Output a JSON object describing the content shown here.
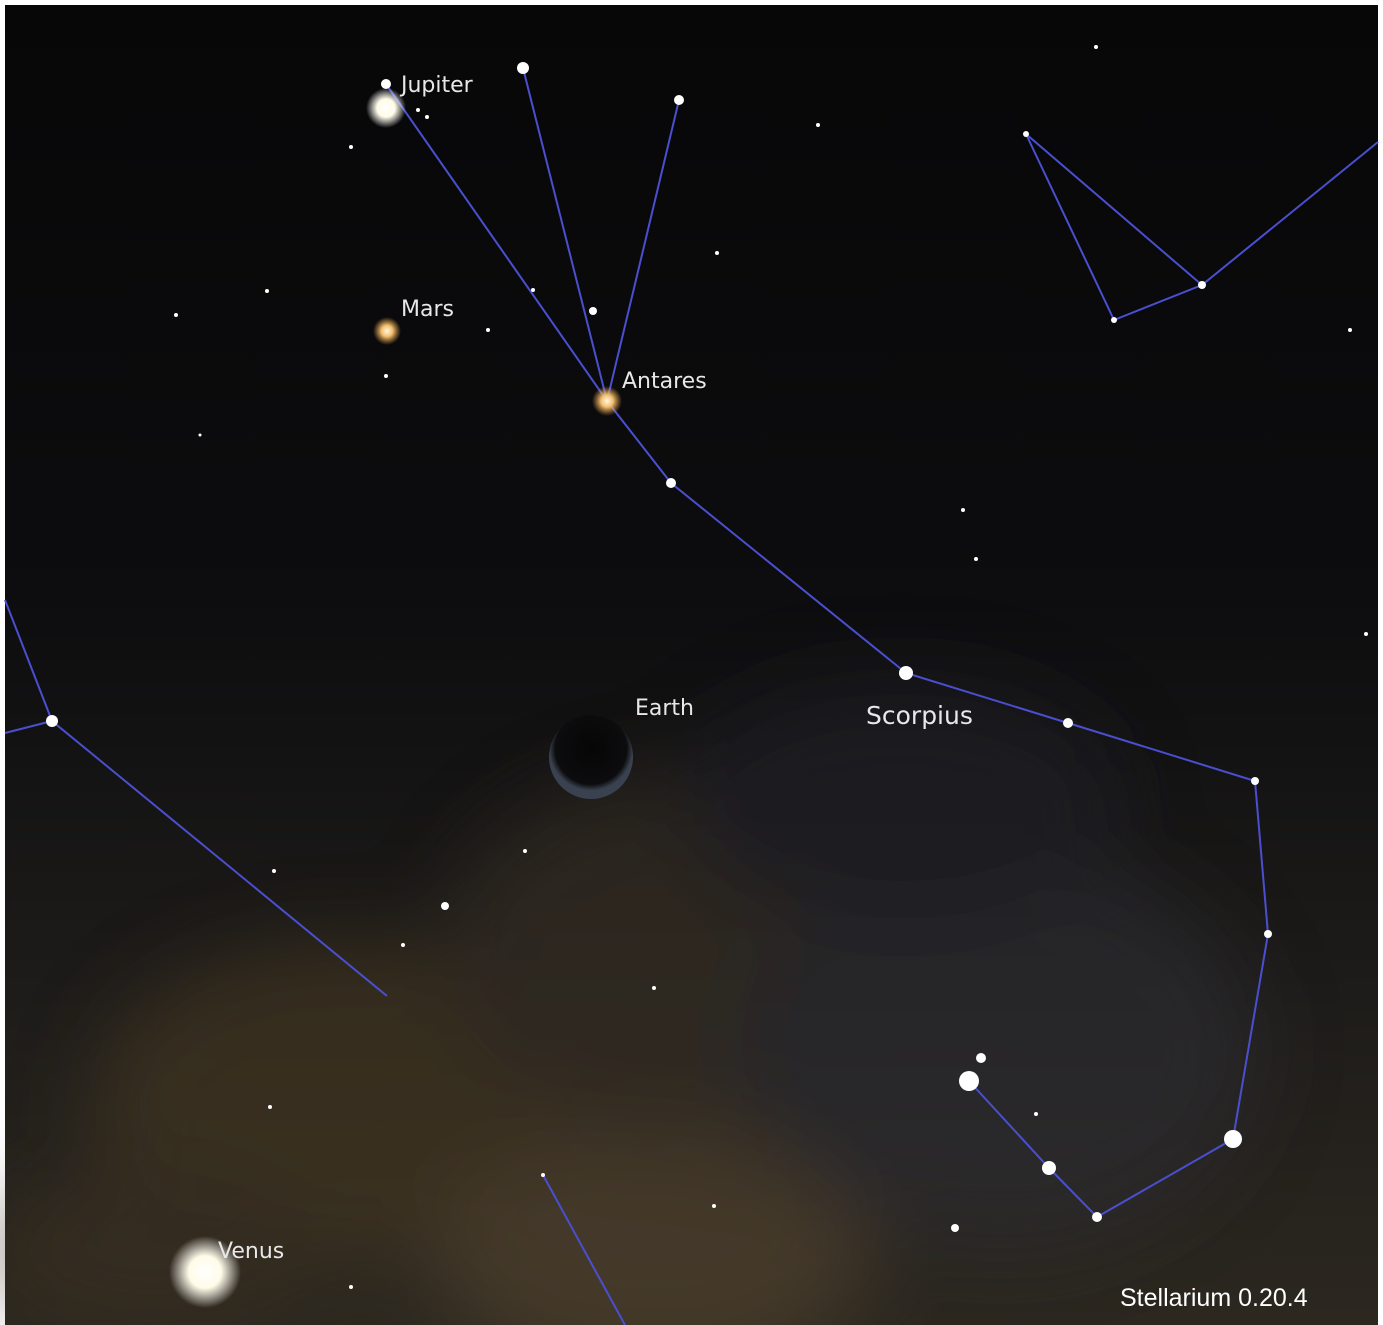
{
  "labels": {
    "jupiter": "Jupiter",
    "mars": "Mars",
    "antares": "Antares",
    "earth": "Earth",
    "scorpius": "Scorpius",
    "venus": "Venus"
  },
  "watermark": "Stellarium 0.20.4"
}
